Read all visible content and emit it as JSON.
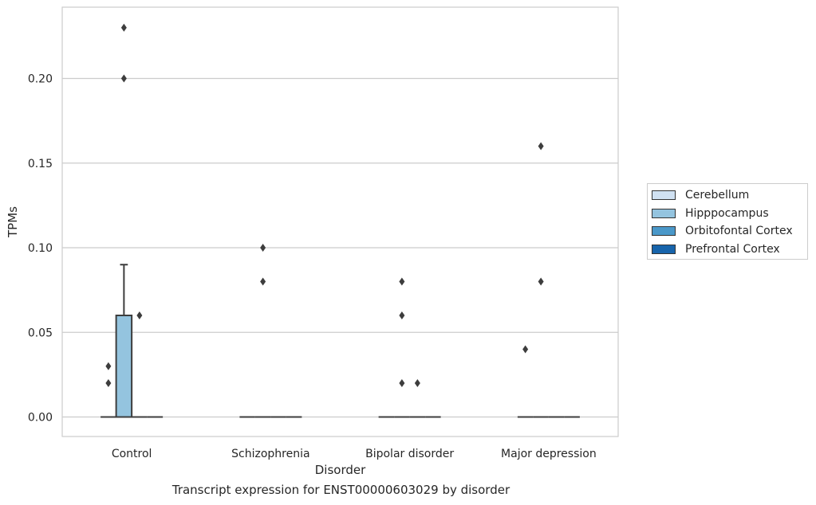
{
  "caption": "Transcript expression for ENST00000603029 by disorder",
  "chart_data": {
    "type": "box",
    "xlabel": "Disorder",
    "ylabel": "TPMs",
    "ylim": [
      -0.01,
      0.24
    ],
    "yticks": [
      0.0,
      0.05,
      0.1,
      0.15,
      0.2
    ],
    "ytick_labels": [
      "0.00",
      "0.05",
      "0.10",
      "0.15",
      "0.20"
    ],
    "grid": "horizontal",
    "legend_position": "right",
    "categories": [
      "Control",
      "Schizophrenia",
      "Bipolar disorder",
      "Major depression"
    ],
    "series": [
      {
        "name": "Cerebellum",
        "color": "#d0e1f2",
        "boxes": [
          {
            "min": 0,
            "q1": 0,
            "median": 0,
            "q3": 0,
            "max": 0,
            "outliers": [
              0.02,
              0.03
            ]
          },
          {
            "min": 0,
            "q1": 0,
            "median": 0,
            "q3": 0,
            "max": 0,
            "outliers": []
          },
          {
            "min": 0,
            "q1": 0,
            "median": 0,
            "q3": 0,
            "max": 0,
            "outliers": []
          },
          {
            "min": 0,
            "q1": 0,
            "median": 0,
            "q3": 0,
            "max": 0,
            "outliers": [
              0.04
            ]
          }
        ]
      },
      {
        "name": "Hipppocampus",
        "color": "#94c4df",
        "boxes": [
          {
            "min": 0,
            "q1": 0,
            "median": 0,
            "q3": 0.06,
            "max": 0.09,
            "outliers": [
              0.2,
              0.23
            ]
          },
          {
            "min": 0,
            "q1": 0,
            "median": 0,
            "q3": 0,
            "max": 0,
            "outliers": [
              0.08,
              0.1
            ]
          },
          {
            "min": 0,
            "q1": 0,
            "median": 0,
            "q3": 0,
            "max": 0,
            "outliers": [
              0.02,
              0.06,
              0.08
            ]
          },
          {
            "min": 0,
            "q1": 0,
            "median": 0,
            "q3": 0,
            "max": 0,
            "outliers": [
              0.08,
              0.16
            ]
          }
        ]
      },
      {
        "name": "Orbitofontal Cortex",
        "color": "#4a98c9",
        "boxes": [
          {
            "min": 0,
            "q1": 0,
            "median": 0,
            "q3": 0,
            "max": 0,
            "outliers": [
              0.06
            ]
          },
          {
            "min": 0,
            "q1": 0,
            "median": 0,
            "q3": 0,
            "max": 0,
            "outliers": []
          },
          {
            "min": 0,
            "q1": 0,
            "median": 0,
            "q3": 0,
            "max": 0,
            "outliers": [
              0.02
            ]
          },
          {
            "min": 0,
            "q1": 0,
            "median": 0,
            "q3": 0,
            "max": 0,
            "outliers": []
          }
        ]
      },
      {
        "name": "Prefrontal Cortex",
        "color": "#1764ab",
        "boxes": [
          {
            "min": 0,
            "q1": 0,
            "median": 0,
            "q3": 0,
            "max": 0,
            "outliers": []
          },
          {
            "min": 0,
            "q1": 0,
            "median": 0,
            "q3": 0,
            "max": 0,
            "outliers": []
          },
          {
            "min": 0,
            "q1": 0,
            "median": 0,
            "q3": 0,
            "max": 0,
            "outliers": []
          },
          {
            "min": 0,
            "q1": 0,
            "median": 0,
            "q3": 0,
            "max": 0,
            "outliers": []
          }
        ]
      }
    ]
  }
}
